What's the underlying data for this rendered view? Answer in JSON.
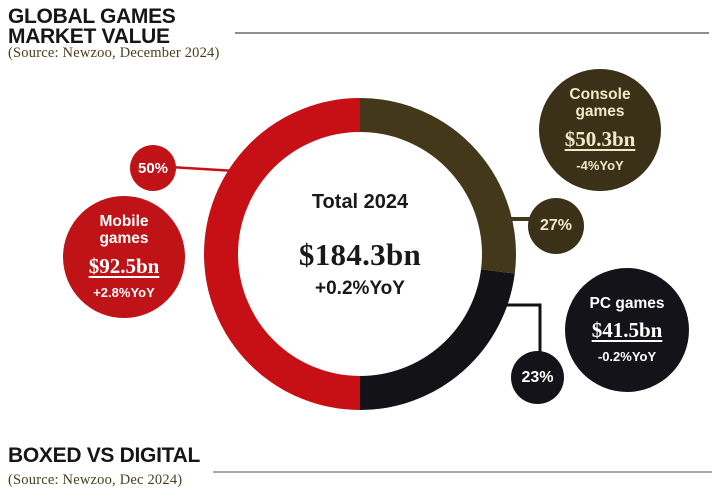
{
  "header": {
    "title_line1": "GLOBAL GAMES",
    "title_line2": "MARKET VALUE",
    "source": "(Source: Newzoo, December 2024)"
  },
  "footer": {
    "title": "BOXED VS DIGITAL",
    "source": "(Source: Newzoo, Dec 2024)"
  },
  "chart_data": {
    "type": "pie",
    "title": "Global Games Market Value",
    "source": "Newzoo, December 2024",
    "units": "USD billions",
    "total_label": "Total 2024",
    "total_value_bn": 184.3,
    "total_display": "$184.3bn",
    "total_yoy": "+0.2%YoY",
    "rotation_deg": 0,
    "draw_order": [
      1,
      2,
      0
    ],
    "legend_position": "callout-bubbles",
    "grid": false,
    "segments": [
      {
        "id": "mobile",
        "name": "Mobile games",
        "label": "Mobile\ngames",
        "share_pct": 50,
        "share_display": "50%",
        "value_bn": 92.5,
        "value_display": "$92.5bn",
        "yoy": "+2.8%YoY",
        "color": "#c61016",
        "bubble_color": "#bf1317",
        "text_color": "#ffffff"
      },
      {
        "id": "console",
        "name": "Console games",
        "label": "Console\ngames",
        "share_pct": 27,
        "share_display": "27%",
        "value_bn": 50.3,
        "value_display": "$50.3bn",
        "yoy": "-4%YoY",
        "color": "#43381a",
        "bubble_color": "#3a3118",
        "text_color": "#f1e8c8"
      },
      {
        "id": "pc",
        "name": "PC games",
        "label": "PC games",
        "share_pct": 23,
        "share_display": "23%",
        "value_bn": 41.5,
        "value_display": "$41.5bn",
        "yoy": "-0.2%YoY",
        "color": "#121217",
        "bubble_color": "#131319",
        "text_color": "#ffffff"
      }
    ]
  }
}
